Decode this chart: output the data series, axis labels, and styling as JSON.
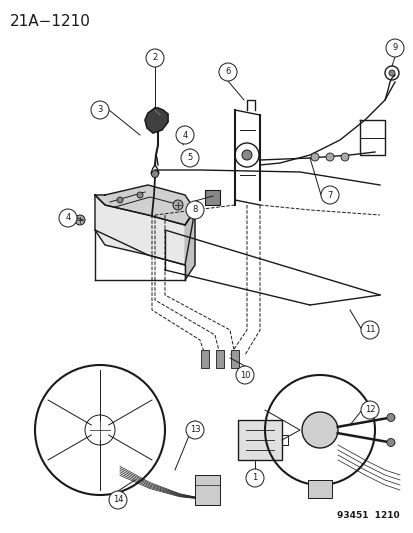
{
  "title": "21A−1210",
  "footer": "93451  1210",
  "bg_color": "#ffffff",
  "color": "#1a1a1a",
  "title_fontsize": 11,
  "footer_fontsize": 6.5
}
